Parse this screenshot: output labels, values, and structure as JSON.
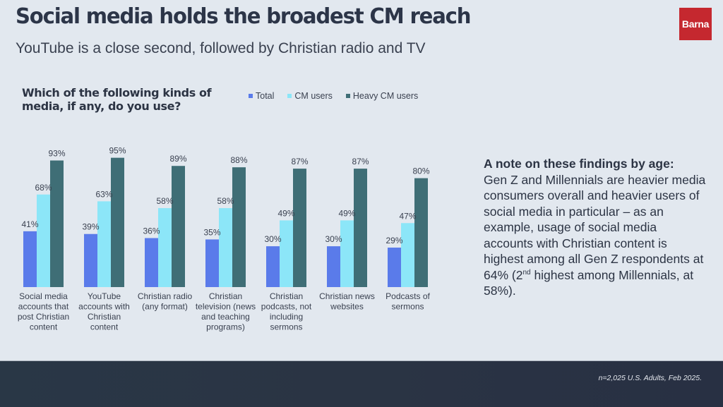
{
  "header": {
    "title": "Social media holds the broadest CM reach",
    "subtitle": "YouTube is a close second, followed by Christian radio and TV",
    "logo_text": "Barna",
    "logo_color": "#c5282f"
  },
  "note": {
    "heading": "A note on these findings by age:",
    "body_part1": "Gen Z and Millennials are heavier media consumers overall and heavier users of social media in particular – as an example, usage of social media accounts with Christian content is highest among all Gen Z respondents at 64% (2",
    "superscript": "nd",
    "body_part2": " highest among Millennials, at 58%)."
  },
  "footer": {
    "source": "n=2,025 U.S. Adults, Feb 2025."
  },
  "chart_data": {
    "type": "bar",
    "title": "Which of the following kinds of media, if any, do you use?",
    "xlabel": "",
    "ylabel": "",
    "ylim": [
      0,
      100
    ],
    "grid": false,
    "legend_position": "top",
    "value_suffix": "%",
    "categories": [
      [
        "Social media",
        "accounts that",
        "post Christian",
        "content"
      ],
      [
        "YouTube",
        "accounts with",
        "Christian",
        "content"
      ],
      [
        "Christian radio",
        "(any format)"
      ],
      [
        "Christian",
        "television (news",
        "and teaching",
        "programs)"
      ],
      [
        "Christian",
        "podcasts, not",
        "including",
        "sermons"
      ],
      [
        "Christian news",
        "websites"
      ],
      [
        "Podcasts of",
        "sermons"
      ]
    ],
    "series": [
      {
        "name": "Total",
        "color": "#5a7bea",
        "values": [
          41,
          39,
          36,
          35,
          30,
          30,
          29
        ]
      },
      {
        "name": "CM users",
        "color": "#8ce6f8",
        "values": [
          68,
          63,
          58,
          58,
          49,
          49,
          47
        ]
      },
      {
        "name": "Heavy CM users",
        "color": "#3f6e76",
        "values": [
          93,
          95,
          89,
          88,
          87,
          87,
          80
        ]
      }
    ]
  }
}
